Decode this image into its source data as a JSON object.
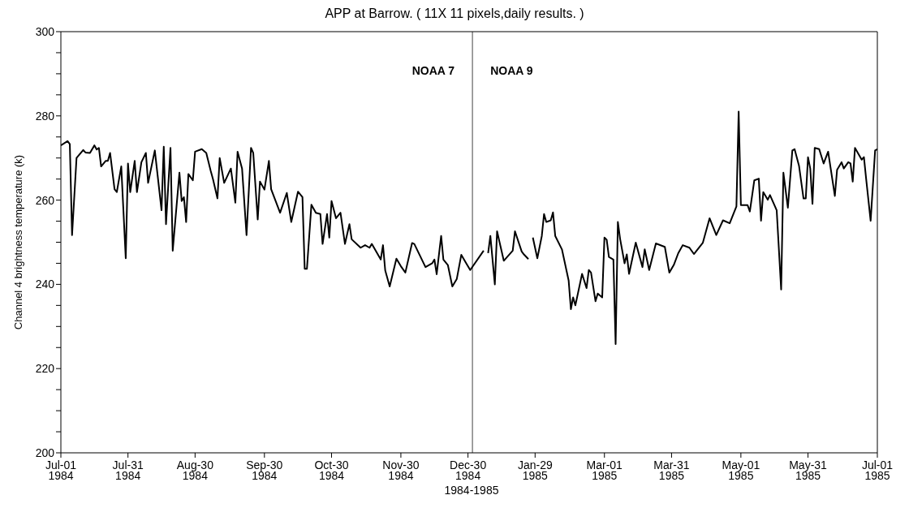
{
  "chart_data": {
    "type": "line",
    "title": "APP at Barrow. ( 11X 11 pixels,daily results. )",
    "xlabel": "1984-1985",
    "ylabel": "Channel 4 brightness temperature (k)",
    "x": [
      "1984-07-01",
      "1984-07-04",
      "1984-07-05",
      "1984-07-06",
      "1984-07-08",
      "1984-07-11",
      "1984-07-12",
      "1984-07-14",
      "1984-07-16",
      "1984-07-17",
      "1984-07-18",
      "1984-07-19",
      "1984-07-21",
      "1984-07-22",
      "1984-07-23",
      "1984-07-25",
      "1984-07-26",
      "1984-07-28",
      "1984-07-30",
      "1984-07-31",
      "1984-08-01",
      "1984-08-03",
      "1984-08-04",
      "1984-08-06",
      "1984-08-08",
      "1984-08-09",
      "1984-08-12",
      "1984-08-15",
      "1984-08-16",
      "1984-08-17",
      "1984-08-19",
      "1984-08-20",
      "1984-08-23",
      "1984-08-24",
      "1984-08-25",
      "1984-08-26",
      "1984-08-27",
      "1984-08-29",
      "1984-08-30",
      "1984-09-02",
      "1984-09-04",
      "1984-09-06",
      "1984-09-07",
      "1984-09-09",
      "1984-09-10",
      "1984-09-12",
      "1984-09-15",
      "1984-09-17",
      "1984-09-18",
      "1984-09-20",
      "1984-09-22",
      "1984-09-24",
      "1984-09-25",
      "1984-09-27",
      "1984-09-28",
      "1984-09-30",
      "1984-10-02",
      "1984-10-03",
      "1984-10-07",
      "1984-10-10",
      "1984-10-12",
      "1984-10-15",
      "1984-10-17",
      "1984-10-18",
      "1984-10-19",
      "1984-10-21",
      "1984-10-23",
      "1984-10-25",
      "1984-10-26",
      "1984-10-28",
      "1984-10-29",
      "1984-10-30",
      "1984-11-01",
      "1984-11-03",
      "1984-11-05",
      "1984-11-07",
      "1984-11-08",
      "1984-11-12",
      "1984-11-14",
      "1984-11-16",
      "1984-11-17",
      "1984-11-21",
      "1984-11-22",
      "1984-11-23",
      "1984-11-25",
      "1984-11-28",
      "1984-11-30",
      "1984-12-02",
      "1984-12-05",
      "1984-12-06",
      "1984-12-11",
      "1984-12-14",
      "1984-12-15",
      "1984-12-16",
      "1984-12-18",
      "1984-12-19",
      "1984-12-21",
      "1984-12-23",
      "1984-12-25",
      "1984-12-27",
      "1984-12-29",
      "1984-12-31",
      "1985-01-06",
      "1985-01-07",
      "1985-01-08",
      "1985-01-09",
      "1985-01-11",
      "1985-01-12",
      "1985-01-15",
      "1985-01-19",
      "1985-01-20",
      "1985-01-23",
      "1985-01-24",
      "1985-01-26",
      "1985-01-27",
      "1985-01-28",
      "1985-01-30",
      "1985-02-01",
      "1985-02-02",
      "1985-02-03",
      "1985-02-05",
      "1985-02-06",
      "1985-02-07",
      "1985-02-10",
      "1985-02-13",
      "1985-02-14",
      "1985-02-15",
      "1985-02-16",
      "1985-02-19",
      "1985-02-21",
      "1985-02-22",
      "1985-02-23",
      "1985-02-25",
      "1985-02-26",
      "1985-02-28",
      "1985-03-01",
      "1985-03-02",
      "1985-03-03",
      "1985-03-05",
      "1985-03-06",
      "1985-03-07",
      "1985-03-08",
      "1985-03-10",
      "1985-03-11",
      "1985-03-12",
      "1985-03-15",
      "1985-03-18",
      "1985-03-19",
      "1985-03-21",
      "1985-03-24",
      "1985-03-28",
      "1985-03-30",
      "1985-04-01",
      "1985-04-03",
      "1985-04-05",
      "1985-04-08",
      "1985-04-10",
      "1985-04-14",
      "1985-04-17",
      "1985-04-20",
      "1985-04-23",
      "1985-04-26",
      "1985-04-29",
      "1985-04-30",
      "1985-05-01",
      "1985-05-04",
      "1985-05-05",
      "1985-05-07",
      "1985-05-09",
      "1985-05-10",
      "1985-05-11",
      "1985-05-13",
      "1985-05-14",
      "1985-05-17",
      "1985-05-19",
      "1985-05-20",
      "1985-05-22",
      "1985-05-24",
      "1985-05-25",
      "1985-05-27",
      "1985-05-29",
      "1985-05-30",
      "1985-05-31",
      "1985-06-01",
      "1985-06-02",
      "1985-06-03",
      "1985-06-05",
      "1985-06-07",
      "1985-06-09",
      "1985-06-12",
      "1985-06-13",
      "1985-06-15",
      "1985-06-16",
      "1985-06-18",
      "1985-06-19",
      "1985-06-20",
      "1985-06-21",
      "1985-06-24",
      "1985-06-25",
      "1985-06-26",
      "1985-06-28",
      "1985-06-30",
      "1985-07-01"
    ],
    "series": [
      {
        "color": "#000000",
        "values": [
          273,
          274,
          273.3,
          251.7,
          270,
          271.9,
          271.3,
          271.2,
          273,
          272,
          272.4,
          268,
          269.3,
          269.3,
          271.2,
          262.6,
          261.9,
          268,
          246.2,
          268.7,
          261.9,
          269.3,
          261.9,
          269,
          271.2,
          264.1,
          271.8,
          257.6,
          272.7,
          254.3,
          272.4,
          248,
          266.5,
          259.8,
          260.7,
          254.8,
          266.2,
          264.7,
          271.5,
          272.1,
          271.2,
          266.9,
          265,
          260.4,
          270,
          264.1,
          267.5,
          259.4,
          271.5,
          267.5,
          251.7,
          272.4,
          271.2,
          255.4,
          264.4,
          262.5,
          269.3,
          262.6,
          257,
          261.7,
          254.8,
          262,
          260.7,
          243.7,
          243.7,
          258.9,
          257,
          256.7,
          249.6,
          256.7,
          251.1,
          259.8,
          255.7,
          257,
          249.6,
          254.3,
          250.7,
          248.7,
          249.3,
          248.7,
          249.6,
          245.9,
          249.3,
          243.3,
          239.5,
          246.1,
          244.3,
          242.8,
          249.8,
          249.6,
          244.1,
          245,
          245.9,
          242.4,
          251.5,
          245.9,
          244.6,
          239.5,
          241.3,
          247,
          245.2,
          243.4,
          248,
          null,
          247.4,
          251.5,
          240,
          252.6,
          245.6,
          248,
          252.6,
          247.8,
          247.1,
          246,
          null,
          251.1,
          246.2,
          251.5,
          256.7,
          254.8,
          255.2,
          257.1,
          251.5,
          248.3,
          240.9,
          234.1,
          236.9,
          235,
          242.5,
          239.1,
          243.4,
          242.8,
          236,
          237.8,
          236.9,
          251.1,
          250.6,
          246.5,
          245.9,
          225.8,
          254.8,
          250.8,
          245,
          247.1,
          242.5,
          249.9,
          244.1,
          248.3,
          243.4,
          249.7,
          248.9,
          242.8,
          244.6,
          247.4,
          249.3,
          248.7,
          247.2,
          249.9,
          255.7,
          251.7,
          255.2,
          254.5,
          258.5,
          281,
          258.8,
          258.8,
          257.3,
          264.7,
          265.1,
          255.1,
          261.9,
          260.1,
          261.2,
          257.6,
          238.8,
          266.5,
          258.2,
          271.8,
          272.1,
          268.1,
          260.4,
          260.4,
          270.2,
          267.5,
          259.1,
          272.4,
          272.1,
          268.7,
          271.5,
          261,
          267.2,
          269,
          267.5,
          269,
          268.7,
          264.4,
          272.4,
          269.6,
          270.2,
          265,
          255.1,
          271.8,
          272.1
        ]
      }
    ],
    "xlim": [
      "1984-07-01",
      "1985-07-01"
    ],
    "xticks": [
      {
        "value": "1984-07-01",
        "label": "Jul-01\n1984"
      },
      {
        "value": "1984-07-31",
        "label": "Jul-31\n1984"
      },
      {
        "value": "1984-08-30",
        "label": "Aug-30\n1984"
      },
      {
        "value": "1984-09-30",
        "label": "Sep-30\n1984"
      },
      {
        "value": "1984-10-30",
        "label": "Oct-30\n1984"
      },
      {
        "value": "1984-11-30",
        "label": "Nov-30\n1984"
      },
      {
        "value": "1984-12-30",
        "label": "Dec-30\n1984"
      },
      {
        "value": "1985-01-29",
        "label": "Jan-29\n1985"
      },
      {
        "value": "1985-03-01",
        "label": "Mar-01\n1985"
      },
      {
        "value": "1985-03-31",
        "label": "Mar-31\n1985"
      },
      {
        "value": "1985-05-01",
        "label": "May-01\n1985"
      },
      {
        "value": "1985-05-31",
        "label": "May-31\n1985"
      },
      {
        "value": "1985-07-01",
        "label": "Jul-01\n1985"
      }
    ],
    "ylim": [
      200,
      300
    ],
    "yticks": [
      200,
      {
        "value": 205,
        "label": null
      },
      {
        "value": 210,
        "label": null
      },
      {
        "value": 215,
        "label": null
      },
      220,
      {
        "value": 225,
        "label": null
      },
      {
        "value": 230,
        "label": null
      },
      {
        "value": 235,
        "label": null
      },
      240,
      {
        "value": 245,
        "label": null
      },
      {
        "value": 250,
        "label": null
      },
      {
        "value": 255,
        "label": null
      },
      260,
      {
        "value": 265,
        "label": null
      },
      {
        "value": 270,
        "label": null
      },
      {
        "value": 275,
        "label": null
      },
      280,
      {
        "value": 285,
        "label": null
      },
      {
        "value": 290,
        "label": null
      },
      {
        "value": 295,
        "label": null
      },
      300
    ],
    "ref_lines": [
      {
        "axis": "x",
        "value": "1985-01-01",
        "color": "#808080"
      }
    ],
    "annotations": [
      "NOAA 7",
      "NOAA 9"
    ],
    "line_style": "solid",
    "marker": "none",
    "grid": false,
    "legend": false
  }
}
